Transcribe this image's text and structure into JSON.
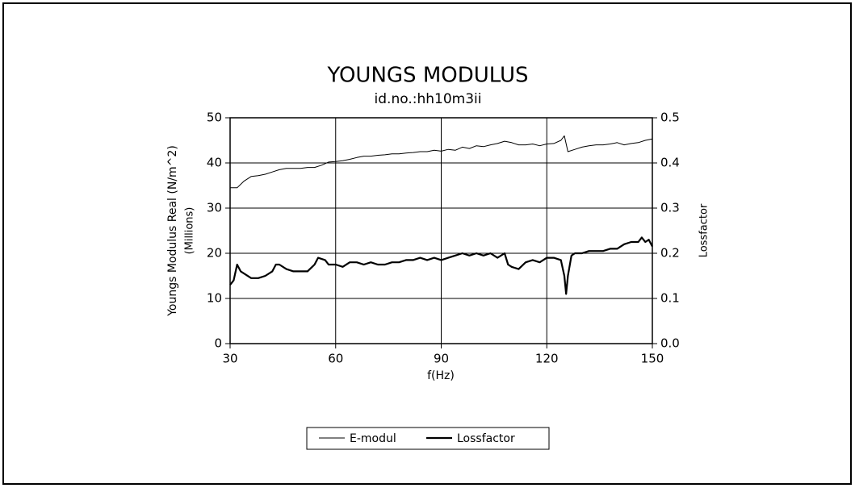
{
  "chart_data": {
    "type": "line",
    "title": "YOUNGS MODULUS",
    "subtitle": "id.no.:hh10m3ii",
    "xlabel": "f(Hz)",
    "ylabel": "Youngs Modulus Real (N/m^2)",
    "ylabel2": "(Millions)",
    "y2label": "Lossfactor",
    "xlim": [
      30,
      150
    ],
    "xticks": [
      30,
      60,
      90,
      120,
      150
    ],
    "ylim": [
      0,
      50
    ],
    "yticks": [
      0,
      10,
      20,
      30,
      40,
      50
    ],
    "y2lim": [
      0,
      0.5
    ],
    "y2ticks": [
      {
        "value": 0,
        "label": "0.0"
      },
      0.1,
      0.2,
      0.3,
      0.4,
      0.5
    ],
    "grid": true,
    "legend": "bottom",
    "series": [
      {
        "name": "E-modul",
        "color": "#000000",
        "width": 1,
        "x": [
          30,
          32,
          34,
          36,
          38,
          40,
          42,
          44,
          46,
          48,
          50,
          52,
          54,
          56,
          58,
          60,
          62,
          64,
          66,
          68,
          70,
          72,
          74,
          76,
          78,
          80,
          82,
          84,
          86,
          88,
          90,
          92,
          94,
          96,
          98,
          100,
          102,
          104,
          106,
          108,
          110,
          112,
          114,
          116,
          118,
          120,
          122,
          124,
          125,
          126,
          128,
          130,
          132,
          134,
          136,
          138,
          140,
          142,
          144,
          146,
          148,
          150
        ],
        "values": [
          34.5,
          34.5,
          36,
          37,
          37.2,
          37.5,
          38,
          38.5,
          38.8,
          38.8,
          38.8,
          39,
          39,
          39.5,
          40.2,
          40.3,
          40.5,
          40.8,
          41.2,
          41.5,
          41.5,
          41.7,
          41.8,
          42,
          42,
          42.2,
          42.3,
          42.5,
          42.5,
          42.8,
          42.6,
          43,
          42.8,
          43.5,
          43.2,
          43.8,
          43.6,
          44,
          44.3,
          44.8,
          44.5,
          44,
          44,
          44.2,
          43.8,
          44.2,
          44.3,
          45,
          46,
          42.5,
          43,
          43.5,
          43.8,
          44,
          44,
          44.2,
          44.5,
          44,
          44.3,
          44.5,
          45,
          45.3
        ]
      },
      {
        "name": "Lossfactor",
        "color": "#000000",
        "width": 2.2,
        "axis": "y2",
        "x": [
          30,
          31,
          32,
          33,
          34,
          36,
          38,
          40,
          42,
          43,
          44,
          46,
          48,
          50,
          52,
          54,
          55,
          57,
          58,
          60,
          62,
          64,
          66,
          68,
          70,
          72,
          74,
          76,
          78,
          80,
          82,
          84,
          86,
          88,
          90,
          92,
          94,
          96,
          98,
          100,
          102,
          104,
          106,
          108,
          109,
          110,
          112,
          114,
          116,
          118,
          120,
          122,
          124,
          125,
          125.5,
          126,
          127,
          128,
          130,
          132,
          134,
          136,
          138,
          140,
          142,
          144,
          146,
          147,
          148,
          149,
          150
        ],
        "values": [
          0.13,
          0.14,
          0.175,
          0.16,
          0.155,
          0.145,
          0.145,
          0.15,
          0.16,
          0.175,
          0.175,
          0.165,
          0.16,
          0.16,
          0.16,
          0.175,
          0.19,
          0.185,
          0.175,
          0.175,
          0.17,
          0.18,
          0.18,
          0.175,
          0.18,
          0.175,
          0.175,
          0.18,
          0.18,
          0.185,
          0.185,
          0.19,
          0.185,
          0.19,
          0.185,
          0.19,
          0.195,
          0.2,
          0.195,
          0.2,
          0.195,
          0.2,
          0.19,
          0.2,
          0.175,
          0.17,
          0.165,
          0.18,
          0.185,
          0.18,
          0.19,
          0.19,
          0.185,
          0.15,
          0.11,
          0.15,
          0.195,
          0.2,
          0.2,
          0.205,
          0.205,
          0.205,
          0.21,
          0.21,
          0.22,
          0.225,
          0.225,
          0.235,
          0.225,
          0.23,
          0.215
        ]
      }
    ]
  }
}
